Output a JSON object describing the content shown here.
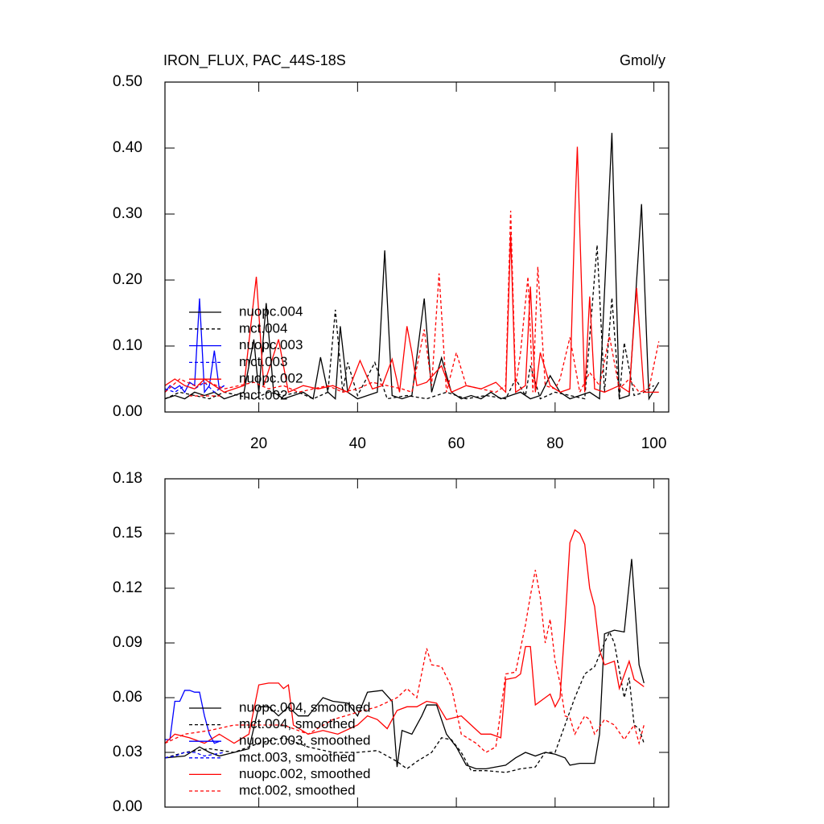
{
  "chart_data": [
    {
      "type": "line",
      "title": "IRON_FLUX, PAC_44S-18S",
      "units": "Gmol/y",
      "xlim": [
        1,
        103
      ],
      "xticks": [
        20,
        40,
        60,
        80,
        100
      ],
      "ylim": [
        0,
        0.5
      ],
      "yticks": [
        {
          "value": 0,
          "label": "0.00"
        },
        {
          "value": 0.1,
          "label": "0.10"
        },
        {
          "value": 0.2,
          "label": "0.20"
        },
        {
          "value": 0.3,
          "label": "0.30"
        },
        {
          "value": 0.4,
          "label": "0.40"
        },
        {
          "value": 0.5,
          "label": "0.50"
        }
      ],
      "legend": "lower-left",
      "series": [
        {
          "name": "nuopc.004",
          "color": "#000000",
          "dash": false,
          "x": [
            1,
            3,
            5,
            7,
            9,
            11,
            13,
            15,
            17,
            19,
            20,
            21.5,
            23,
            25,
            27,
            29,
            31,
            32.5,
            34,
            35.5,
            36.5,
            38,
            40,
            42,
            44,
            45.5,
            47,
            49,
            51,
            53.5,
            55,
            57,
            59,
            61,
            63,
            65,
            67,
            69,
            71,
            73,
            75,
            77,
            79,
            81,
            83,
            85,
            87,
            89,
            91.5,
            93,
            95,
            97.5,
            99,
            101
          ],
          "values": [
            0.02,
            0.025,
            0.02,
            0.03,
            0.025,
            0.03,
            0.02,
            0.025,
            0.03,
            0.11,
            0.03,
            0.165,
            0.03,
            0.02,
            0.025,
            0.03,
            0.02,
            0.083,
            0.03,
            0.02,
            0.13,
            0.03,
            0.02,
            0.025,
            0.03,
            0.245,
            0.025,
            0.02,
            0.025,
            0.172,
            0.03,
            0.082,
            0.03,
            0.02,
            0.025,
            0.02,
            0.03,
            0.02,
            0.025,
            0.03,
            0.02,
            0.025,
            0.055,
            0.03,
            0.02,
            0.025,
            0.03,
            0.02,
            0.423,
            0.02,
            0.025,
            0.315,
            0.02,
            0.045
          ]
        },
        {
          "name": "mct.004",
          "color": "#000000",
          "dash": true,
          "x": [
            1,
            4,
            7,
            10,
            13,
            16,
            19,
            22,
            25,
            28,
            31,
            34,
            35.5,
            37,
            38,
            40,
            43.5,
            46,
            50,
            54,
            58,
            62,
            66,
            70,
            72,
            74,
            75,
            77,
            80,
            83,
            86,
            88.5,
            90,
            91.5,
            93,
            94,
            96,
            98,
            100
          ],
          "values": [
            0.02,
            0.03,
            0.025,
            0.02,
            0.03,
            0.025,
            0.02,
            0.03,
            0.025,
            0.03,
            0.02,
            0.03,
            0.155,
            0.03,
            0.075,
            0.025,
            0.075,
            0.02,
            0.025,
            0.02,
            0.03,
            0.02,
            0.025,
            0.02,
            0.05,
            0.025,
            0.07,
            0.02,
            0.03,
            0.025,
            0.02,
            0.253,
            0.03,
            0.173,
            0.02,
            0.105,
            0.025,
            0.03,
            0.04
          ]
        },
        {
          "name": "nuopc.003",
          "color": "#0000ff",
          "dash": false,
          "x": [
            1,
            2,
            3,
            4,
            5,
            6,
            7,
            8,
            9,
            10,
            11,
            12,
            13
          ],
          "values": [
            0.03,
            0.04,
            0.035,
            0.04,
            0.03,
            0.045,
            0.04,
            0.172,
            0.03,
            0.04,
            0.093,
            0.035,
            0.04
          ]
        },
        {
          "name": "mct.003",
          "color": "#0000ff",
          "dash": true,
          "x": [
            1,
            3,
            5,
            7,
            9,
            11,
            13
          ],
          "values": [
            0.035,
            0.03,
            0.04,
            0.035,
            0.045,
            0.03,
            0.04
          ]
        },
        {
          "name": "nuopc.002",
          "color": "#ff0000",
          "dash": false,
          "x": [
            1,
            3,
            5,
            7,
            9,
            11,
            13,
            15,
            17,
            19.5,
            21,
            24,
            26,
            29,
            32,
            35,
            38,
            40.5,
            43,
            45,
            47,
            48.5,
            50,
            51,
            52,
            54,
            57,
            59,
            62,
            65,
            68,
            70,
            71,
            72,
            74,
            75,
            76,
            77,
            79,
            81,
            83,
            84,
            84.5,
            86,
            87,
            88,
            90,
            93,
            95,
            96.5,
            98,
            101
          ],
          "values": [
            0.04,
            0.05,
            0.04,
            0.035,
            0.05,
            0.04,
            0.03,
            0.035,
            0.04,
            0.205,
            0.04,
            0.11,
            0.03,
            0.04,
            0.035,
            0.04,
            0.03,
            0.078,
            0.035,
            0.04,
            0.08,
            0.03,
            0.13,
            0.09,
            0.04,
            0.045,
            0.07,
            0.03,
            0.04,
            0.035,
            0.045,
            0.03,
            0.27,
            0.03,
            0.04,
            0.19,
            0.03,
            0.09,
            0.04,
            0.03,
            0.035,
            0.3,
            0.402,
            0.03,
            0.175,
            0.035,
            0.03,
            0.04,
            0.03,
            0.188,
            0.03,
            0.03
          ]
        },
        {
          "name": "mct.002",
          "color": "#ff0000",
          "dash": true,
          "x": [
            1,
            4,
            7,
            10,
            13,
            16,
            19,
            22,
            25,
            28,
            31,
            34,
            37,
            40,
            43,
            46,
            49,
            51,
            53.5,
            55,
            56.5,
            58,
            60,
            62,
            65,
            68,
            70,
            71,
            72,
            73,
            74.5,
            75.5,
            76.5,
            78,
            80,
            81,
            83,
            85,
            87,
            89,
            91,
            93,
            95,
            97,
            99,
            101
          ],
          "values": [
            0.03,
            0.05,
            0.04,
            0.045,
            0.035,
            0.04,
            0.045,
            0.035,
            0.04,
            0.03,
            0.035,
            0.04,
            0.03,
            0.035,
            0.045,
            0.04,
            0.035,
            0.03,
            0.125,
            0.04,
            0.21,
            0.03,
            0.09,
            0.04,
            0.035,
            0.03,
            0.04,
            0.305,
            0.04,
            0.09,
            0.205,
            0.03,
            0.22,
            0.04,
            0.035,
            0.05,
            0.113,
            0.03,
            0.06,
            0.04,
            0.115,
            0.035,
            0.05,
            0.03,
            0.035,
            0.107
          ]
        }
      ]
    },
    {
      "type": "line",
      "xlim": [
        1,
        103
      ],
      "xticks": [
        20,
        40,
        60,
        80,
        100
      ],
      "x_tick_labels": false,
      "ylim": [
        0,
        0.18
      ],
      "yticks": [
        {
          "value": 0,
          "label": "0.00"
        },
        {
          "value": 0.03,
          "label": "0.03"
        },
        {
          "value": 0.06,
          "label": "0.06"
        },
        {
          "value": 0.09,
          "label": "0.09"
        },
        {
          "value": 0.12,
          "label": "0.12"
        },
        {
          "value": 0.15,
          "label": "0.15"
        },
        {
          "value": 0.18,
          "label": "0.18"
        }
      ],
      "legend": "lower-left",
      "series": [
        {
          "name": "nuopc.004, smoothed",
          "color": "#000000",
          "dash": false,
          "x": [
            1,
            5,
            8,
            10,
            12,
            15,
            18,
            20,
            22,
            24,
            26,
            28,
            30,
            33,
            35,
            38,
            40,
            42,
            45,
            47,
            48,
            49,
            51,
            53,
            54,
            56,
            58,
            60,
            62,
            64,
            66,
            68,
            70,
            72,
            74,
            76,
            78,
            80,
            82,
            83,
            85,
            88,
            89,
            90,
            92,
            94,
            95.5,
            97,
            98
          ],
          "values": [
            0.027,
            0.028,
            0.033,
            0.03,
            0.028,
            0.03,
            0.032,
            0.055,
            0.055,
            0.05,
            0.055,
            0.05,
            0.05,
            0.06,
            0.058,
            0.057,
            0.05,
            0.063,
            0.064,
            0.058,
            0.022,
            0.042,
            0.04,
            0.05,
            0.056,
            0.056,
            0.04,
            0.033,
            0.023,
            0.021,
            0.021,
            0.022,
            0.023,
            0.027,
            0.03,
            0.028,
            0.03,
            0.029,
            0.027,
            0.023,
            0.024,
            0.024,
            0.04,
            0.095,
            0.097,
            0.096,
            0.136,
            0.078,
            0.068
          ]
        },
        {
          "name": "mct.004, smoothed",
          "color": "#000000",
          "dash": true,
          "x": [
            1,
            5,
            10,
            15,
            20,
            25,
            30,
            35,
            40,
            44,
            48,
            50,
            52,
            55,
            57,
            59,
            61,
            63,
            66,
            70,
            73,
            76,
            78,
            80,
            82,
            84,
            86,
            88,
            90,
            91,
            92,
            94,
            95,
            96,
            97,
            98
          ],
          "values": [
            0.027,
            0.03,
            0.032,
            0.03,
            0.035,
            0.038,
            0.033,
            0.03,
            0.03,
            0.031,
            0.025,
            0.021,
            0.025,
            0.03,
            0.038,
            0.037,
            0.03,
            0.02,
            0.02,
            0.019,
            0.021,
            0.022,
            0.03,
            0.03,
            0.045,
            0.06,
            0.073,
            0.077,
            0.09,
            0.096,
            0.09,
            0.06,
            0.071,
            0.045,
            0.043,
            0.035
          ]
        },
        {
          "name": "nuopc.003, smoothed",
          "color": "#0000ff",
          "dash": false,
          "x": [
            1,
            2,
            3,
            4,
            5,
            6,
            7,
            8,
            9,
            10,
            11,
            12
          ],
          "values": [
            0.037,
            0.037,
            0.058,
            0.058,
            0.064,
            0.064,
            0.063,
            0.063,
            0.05,
            0.04,
            0.035,
            0.036
          ]
        },
        {
          "name": "mct.003, smoothed",
          "color": "#0000ff",
          "dash": true,
          "x": [
            1,
            3,
            5,
            7,
            9,
            11,
            13
          ],
          "values": [
            0.027,
            0.028,
            0.03,
            0.03,
            0.028,
            0.029,
            0.03
          ]
        },
        {
          "name": "nuopc.002, smoothed",
          "color": "#ff0000",
          "dash": false,
          "x": [
            1,
            3,
            6,
            9,
            12,
            15,
            18,
            20,
            22,
            24,
            25,
            26,
            27,
            30,
            33,
            36,
            40,
            42,
            44,
            46,
            48,
            50,
            52,
            54,
            56,
            58,
            61,
            63,
            65,
            67,
            69,
            70,
            72,
            73,
            74,
            75,
            76,
            78,
            79,
            80,
            81,
            82,
            83,
            84,
            85,
            86,
            87,
            88,
            89,
            90,
            92,
            93,
            95,
            96,
            98
          ],
          "values": [
            0.035,
            0.04,
            0.038,
            0.035,
            0.04,
            0.035,
            0.04,
            0.067,
            0.068,
            0.068,
            0.065,
            0.067,
            0.045,
            0.04,
            0.042,
            0.04,
            0.045,
            0.05,
            0.048,
            0.043,
            0.053,
            0.055,
            0.055,
            0.058,
            0.057,
            0.048,
            0.05,
            0.045,
            0.04,
            0.04,
            0.038,
            0.07,
            0.071,
            0.073,
            0.088,
            0.088,
            0.056,
            0.06,
            0.062,
            0.055,
            0.06,
            0.1,
            0.145,
            0.152,
            0.15,
            0.144,
            0.12,
            0.11,
            0.086,
            0.078,
            0.08,
            0.065,
            0.08,
            0.07,
            0.066
          ]
        },
        {
          "name": "mct.002, smoothed",
          "color": "#ff0000",
          "dash": true,
          "x": [
            1,
            5,
            10,
            15,
            20,
            25,
            30,
            35,
            40,
            44,
            48,
            50,
            52,
            54,
            55,
            57,
            59,
            61,
            64,
            66,
            68,
            70,
            72,
            74,
            75,
            76,
            77,
            78,
            79,
            80,
            81,
            82,
            83,
            84,
            86,
            87,
            88,
            90,
            92,
            94,
            96,
            97,
            98
          ],
          "values": [
            0.035,
            0.04,
            0.042,
            0.045,
            0.045,
            0.045,
            0.04,
            0.048,
            0.052,
            0.055,
            0.06,
            0.065,
            0.06,
            0.087,
            0.078,
            0.077,
            0.066,
            0.04,
            0.035,
            0.03,
            0.033,
            0.073,
            0.074,
            0.1,
            0.116,
            0.13,
            0.115,
            0.09,
            0.103,
            0.08,
            0.068,
            0.05,
            0.049,
            0.04,
            0.05,
            0.048,
            0.04,
            0.048,
            0.045,
            0.037,
            0.045,
            0.035,
            0.045
          ]
        }
      ]
    }
  ]
}
